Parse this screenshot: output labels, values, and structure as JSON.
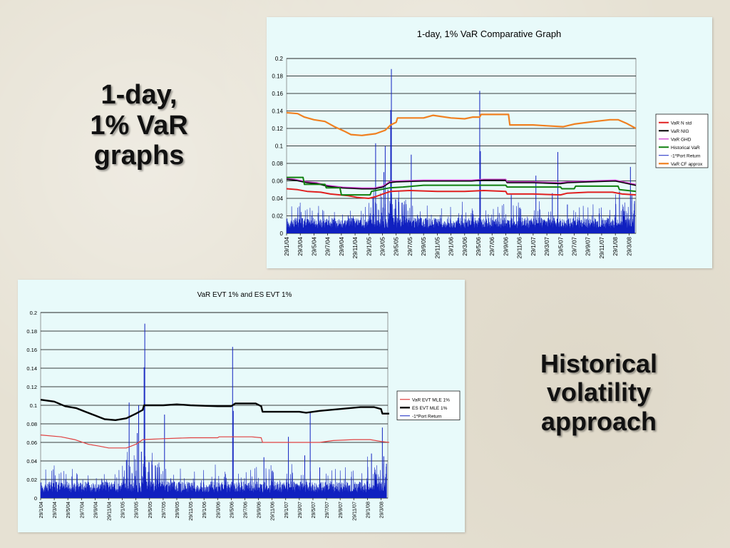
{
  "slide": {
    "heading_left_lines": [
      "1-day,",
      "1% VaR",
      "graphs"
    ],
    "heading_right_lines": [
      "Historical",
      "volatility",
      "approach"
    ]
  },
  "chart_data": [
    {
      "type": "line",
      "title": "1-day, 1% VaR Comparative Graph",
      "xlabel": "",
      "ylabel": "",
      "ylim": [
        0,
        0.2
      ],
      "yticks": [
        "0",
        "0.02",
        "0.04",
        "0.06",
        "0.08",
        "0.1",
        "0.12",
        "0.14",
        "0.16",
        "0.18",
        "0.2"
      ],
      "xticks": [
        "29/1/04",
        "29/3/04",
        "29/5/04",
        "29/7/04",
        "29/9/04",
        "29/11/04",
        "29/1/05",
        "29/3/05",
        "29/5/05",
        "29/7/05",
        "29/9/05",
        "29/11/05",
        "29/1/06",
        "29/3/06",
        "29/5/06",
        "29/7/06",
        "29/9/06",
        "29/11/06",
        "29/1/07",
        "29/3/07",
        "29/5/07",
        "29/7/07",
        "29/9/07",
        "29/11/07",
        "29/1/08",
        "29/3/08"
      ],
      "grid": true,
      "legend_position": "right",
      "series": [
        {
          "name": "VaR N std",
          "color": "#e02020",
          "width": 2,
          "points": [
            [
              0,
              0.051
            ],
            [
              0.8,
              0.05
            ],
            [
              1.5,
              0.048
            ],
            [
              2.5,
              0.047
            ],
            [
              3.2,
              0.045
            ],
            [
              4.5,
              0.043
            ],
            [
              5.2,
              0.041
            ],
            [
              6.0,
              0.04
            ],
            [
              6.5,
              0.042
            ],
            [
              7.2,
              0.046
            ],
            [
              7.6,
              0.048
            ],
            [
              9,
              0.049
            ],
            [
              11,
              0.048
            ],
            [
              13,
              0.048
            ],
            [
              14.4,
              0.049
            ],
            [
              16,
              0.048
            ],
            [
              16.1,
              0.045
            ],
            [
              18,
              0.045
            ],
            [
              20,
              0.044
            ],
            [
              20.5,
              0.046
            ],
            [
              22,
              0.047
            ],
            [
              23.8,
              0.047
            ],
            [
              24.5,
              0.045
            ],
            [
              25.5,
              0.044
            ]
          ]
        },
        {
          "name": "VaR NIG",
          "color": "#000000",
          "width": 2,
          "points": [
            [
              0,
              0.062
            ],
            [
              0.6,
              0.061
            ],
            [
              1.5,
              0.058
            ],
            [
              2.2,
              0.057
            ],
            [
              3.0,
              0.054
            ],
            [
              4.1,
              0.052
            ],
            [
              5.5,
              0.051
            ],
            [
              6.4,
              0.051
            ],
            [
              7.0,
              0.053
            ],
            [
              7.5,
              0.058
            ],
            [
              8,
              0.059
            ],
            [
              10,
              0.06
            ],
            [
              12,
              0.06
            ],
            [
              13.5,
              0.06
            ],
            [
              14.4,
              0.061
            ],
            [
              16,
              0.061
            ],
            [
              16.1,
              0.058
            ],
            [
              18,
              0.058
            ],
            [
              20,
              0.057
            ],
            [
              20.5,
              0.058
            ],
            [
              22,
              0.059
            ],
            [
              24,
              0.06
            ],
            [
              24.6,
              0.058
            ],
            [
              25.5,
              0.055
            ]
          ]
        },
        {
          "name": "VaR GHD",
          "color": "#d040d0",
          "width": 1.3,
          "points": [
            [
              0,
              0.063
            ],
            [
              0.6,
              0.062
            ],
            [
              1.5,
              0.059
            ],
            [
              2.2,
              0.058
            ],
            [
              3.0,
              0.055
            ],
            [
              4.1,
              0.053
            ],
            [
              5.5,
              0.052
            ],
            [
              6.4,
              0.052
            ],
            [
              7.0,
              0.054
            ],
            [
              7.5,
              0.059
            ],
            [
              8,
              0.06
            ],
            [
              10,
              0.061
            ],
            [
              12,
              0.061
            ],
            [
              13.5,
              0.061
            ],
            [
              14.4,
              0.062
            ],
            [
              16,
              0.062
            ],
            [
              16.1,
              0.059
            ],
            [
              18,
              0.059
            ],
            [
              20,
              0.058
            ],
            [
              20.5,
              0.059
            ],
            [
              22,
              0.06
            ],
            [
              24,
              0.061
            ],
            [
              24.6,
              0.059
            ],
            [
              25.5,
              0.056
            ]
          ]
        },
        {
          "name": "Historical VaR",
          "color": "#108010",
          "width": 2,
          "points": [
            [
              0,
              0.064
            ],
            [
              1.2,
              0.064
            ],
            [
              1.3,
              0.056
            ],
            [
              2.8,
              0.056
            ],
            [
              2.9,
              0.052
            ],
            [
              3.9,
              0.052
            ],
            [
              4.0,
              0.044
            ],
            [
              6.1,
              0.044
            ],
            [
              6.2,
              0.048
            ],
            [
              7.5,
              0.052
            ],
            [
              8.5,
              0.053
            ],
            [
              10,
              0.055
            ],
            [
              16,
              0.055
            ],
            [
              16.1,
              0.053
            ],
            [
              20,
              0.053
            ],
            [
              20.1,
              0.051
            ],
            [
              21,
              0.051
            ],
            [
              21.1,
              0.054
            ],
            [
              24.2,
              0.054
            ],
            [
              24.3,
              0.05
            ],
            [
              25.5,
              0.048
            ]
          ]
        },
        {
          "name": "VaR CF approx",
          "color": "#f08020",
          "width": 2.2,
          "points": [
            [
              0,
              0.138
            ],
            [
              0.8,
              0.137
            ],
            [
              1.3,
              0.133
            ],
            [
              2.0,
              0.13
            ],
            [
              2.8,
              0.128
            ],
            [
              3.5,
              0.122
            ],
            [
              4.2,
              0.117
            ],
            [
              4.7,
              0.113
            ],
            [
              5.5,
              0.112
            ],
            [
              6.5,
              0.114
            ],
            [
              7.2,
              0.118
            ],
            [
              7.6,
              0.124
            ],
            [
              8.0,
              0.127
            ],
            [
              8.1,
              0.132
            ],
            [
              10,
              0.132
            ],
            [
              10.7,
              0.135
            ],
            [
              12,
              0.132
            ],
            [
              13,
              0.131
            ],
            [
              13.6,
              0.133
            ],
            [
              14.1,
              0.133
            ],
            [
              14.2,
              0.136
            ],
            [
              16.2,
              0.136
            ],
            [
              16.3,
              0.124
            ],
            [
              18,
              0.124
            ],
            [
              19,
              0.123
            ],
            [
              20.2,
              0.122
            ],
            [
              21,
              0.125
            ],
            [
              22.5,
              0.128
            ],
            [
              23.6,
              0.13
            ],
            [
              24.2,
              0.13
            ],
            [
              24.8,
              0.126
            ],
            [
              25.5,
              0.12
            ]
          ]
        }
      ],
      "returns": {
        "name": "-1*Port Return",
        "color": "#1020c0",
        "spikes": [
          [
            6.3,
            0.041
          ],
          [
            6.5,
            0.103
          ],
          [
            7.1,
            0.07
          ],
          [
            7.2,
            0.1
          ],
          [
            7.4,
            0.05
          ],
          [
            7.6,
            0.141
          ],
          [
            7.65,
            0.188
          ],
          [
            9.1,
            0.09
          ],
          [
            14.1,
            0.163
          ],
          [
            14.15,
            0.094
          ],
          [
            16.4,
            0.044
          ],
          [
            18.2,
            0.066
          ],
          [
            19.4,
            0.046
          ],
          [
            19.8,
            0.093
          ],
          [
            20.5,
            0.033
          ],
          [
            24.3,
            0.048
          ],
          [
            25.1,
            0.076
          ],
          [
            25.2,
            0.045
          ],
          [
            25.4,
            0.037
          ]
        ]
      }
    },
    {
      "type": "line",
      "title": "VaR EVT 1% and ES EVT 1%",
      "xlabel": "",
      "ylabel": "",
      "ylim": [
        0,
        0.2
      ],
      "yticks": [
        "0",
        "0.02",
        "0.04",
        "0.06",
        "0.08",
        "0.1",
        "0.12",
        "0.14",
        "0.16",
        "0.18",
        "0.2"
      ],
      "xticks": [
        "29/1/04",
        "29/3/04",
        "29/5/04",
        "29/7/04",
        "29/9/04",
        "29/11/04",
        "29/1/05",
        "29/3/05",
        "29/5/05",
        "29/7/05",
        "29/9/05",
        "29/11/05",
        "29/1/06",
        "29/3/06",
        "29/5/06",
        "29/7/06",
        "29/9/06",
        "29/11/06",
        "29/1/07",
        "29/3/07",
        "29/5/07",
        "29/7/07",
        "29/9/07",
        "29/11/07",
        "29/1/08",
        "29/3/08"
      ],
      "grid": true,
      "legend_position": "right",
      "series": [
        {
          "name": "VaR EVT MLE 1%",
          "color": "#e04040",
          "width": 1.2,
          "points": [
            [
              0,
              0.068
            ],
            [
              1.5,
              0.066
            ],
            [
              2.5,
              0.063
            ],
            [
              3.5,
              0.058
            ],
            [
              4.3,
              0.056
            ],
            [
              5.0,
              0.054
            ],
            [
              6.3,
              0.054
            ],
            [
              7.0,
              0.058
            ],
            [
              7.5,
              0.063
            ],
            [
              9,
              0.064
            ],
            [
              11,
              0.065
            ],
            [
              13,
              0.065
            ],
            [
              13.1,
              0.066
            ],
            [
              15.5,
              0.066
            ],
            [
              16.2,
              0.065
            ],
            [
              16.3,
              0.06
            ],
            [
              20.5,
              0.06
            ],
            [
              21.5,
              0.062
            ],
            [
              23,
              0.063
            ],
            [
              24.2,
              0.063
            ],
            [
              25.0,
              0.061
            ],
            [
              25.6,
              0.06
            ]
          ]
        },
        {
          "name": "ES EVT MLE 1%",
          "color": "#000000",
          "width": 2.4,
          "points": [
            [
              0,
              0.106
            ],
            [
              1.0,
              0.104
            ],
            [
              1.8,
              0.099
            ],
            [
              2.6,
              0.097
            ],
            [
              3.3,
              0.093
            ],
            [
              4.0,
              0.089
            ],
            [
              4.7,
              0.085
            ],
            [
              5.5,
              0.084
            ],
            [
              6.3,
              0.086
            ],
            [
              7.0,
              0.091
            ],
            [
              7.5,
              0.095
            ],
            [
              7.6,
              0.1
            ],
            [
              9,
              0.1
            ],
            [
              10,
              0.101
            ],
            [
              11,
              0.1
            ],
            [
              13,
              0.099
            ],
            [
              14,
              0.099
            ],
            [
              14.3,
              0.102
            ],
            [
              15.8,
              0.102
            ],
            [
              16.2,
              0.099
            ],
            [
              16.3,
              0.093
            ],
            [
              19,
              0.093
            ],
            [
              19.5,
              0.092
            ],
            [
              20.5,
              0.094
            ],
            [
              22,
              0.096
            ],
            [
              23.5,
              0.098
            ],
            [
              24.5,
              0.098
            ],
            [
              25.0,
              0.096
            ],
            [
              25.1,
              0.091
            ],
            [
              25.6,
              0.091
            ]
          ]
        }
      ],
      "returns": {
        "name": "-1*Port Return",
        "color": "#1020c0",
        "spikes": [
          [
            6.3,
            0.041
          ],
          [
            6.5,
            0.103
          ],
          [
            7.1,
            0.07
          ],
          [
            7.2,
            0.1
          ],
          [
            7.4,
            0.05
          ],
          [
            7.6,
            0.141
          ],
          [
            7.65,
            0.188
          ],
          [
            9.1,
            0.09
          ],
          [
            14.1,
            0.163
          ],
          [
            14.15,
            0.094
          ],
          [
            16.4,
            0.044
          ],
          [
            18.2,
            0.066
          ],
          [
            19.4,
            0.046
          ],
          [
            19.8,
            0.093
          ],
          [
            20.5,
            0.033
          ],
          [
            24.3,
            0.048
          ],
          [
            25.1,
            0.076
          ],
          [
            25.2,
            0.045
          ],
          [
            25.4,
            0.037
          ]
        ]
      }
    }
  ]
}
